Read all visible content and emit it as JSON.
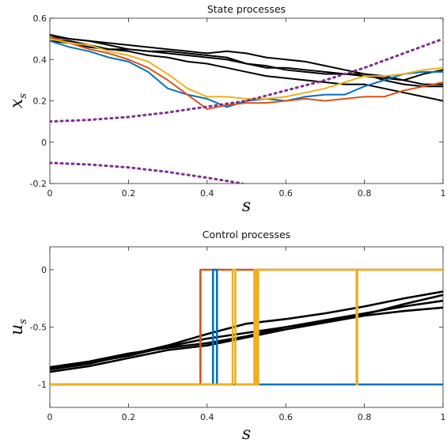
{
  "chart_data": [
    {
      "type": "line",
      "title": "State processes",
      "xlabel": "s",
      "ylabel_main": "x",
      "ylabel_sub": "s",
      "xlim": [
        0,
        1
      ],
      "ylim": [
        -0.2,
        0.6
      ],
      "xticks": [
        "0",
        "0.2",
        "0.4",
        "0.6",
        "0.8",
        "1"
      ],
      "yticks": [
        "-0.2",
        "0",
        "0.2",
        "0.4",
        "0.6"
      ],
      "colors": {
        "black": "#000000",
        "blue": "#0072BD",
        "orange": "#D95319",
        "yellow": "#EDB120",
        "purple": "#7E2F8E"
      },
      "series": [
        {
          "color": "black",
          "style": "solid",
          "x": [
            0,
            0.05,
            0.1,
            0.15,
            0.2,
            0.25,
            0.3,
            0.35,
            0.4,
            0.45,
            0.5,
            0.55,
            0.6,
            0.65,
            0.7,
            0.75,
            0.8,
            0.85,
            0.9,
            0.95,
            1
          ],
          "y": [
            0.51,
            0.5,
            0.49,
            0.48,
            0.47,
            0.46,
            0.45,
            0.44,
            0.43,
            0.44,
            0.43,
            0.41,
            0.4,
            0.39,
            0.37,
            0.35,
            0.33,
            0.3,
            0.28,
            0.27,
            0.27
          ]
        },
        {
          "color": "black",
          "style": "solid",
          "x": [
            0,
            0.05,
            0.1,
            0.15,
            0.2,
            0.25,
            0.3,
            0.35,
            0.4,
            0.45,
            0.5,
            0.55,
            0.6,
            0.65,
            0.7,
            0.75,
            0.8,
            0.85,
            0.9,
            0.95,
            1
          ],
          "y": [
            0.5,
            0.49,
            0.47,
            0.45,
            0.45,
            0.44,
            0.44,
            0.43,
            0.42,
            0.41,
            0.38,
            0.36,
            0.36,
            0.35,
            0.34,
            0.33,
            0.33,
            0.32,
            0.3,
            0.33,
            0.35
          ]
        },
        {
          "color": "black",
          "style": "solid",
          "x": [
            0,
            0.05,
            0.1,
            0.15,
            0.2,
            0.25,
            0.3,
            0.35,
            0.4,
            0.45,
            0.5,
            0.55,
            0.6,
            0.65,
            0.7,
            0.75,
            0.8,
            0.85,
            0.9,
            0.95,
            1
          ],
          "y": [
            0.49,
            0.48,
            0.46,
            0.45,
            0.44,
            0.42,
            0.41,
            0.39,
            0.38,
            0.36,
            0.34,
            0.32,
            0.31,
            0.3,
            0.29,
            0.28,
            0.28,
            0.26,
            0.24,
            0.22,
            0.2
          ]
        },
        {
          "color": "black",
          "style": "solid",
          "x": [
            0,
            0.05,
            0.1,
            0.15,
            0.2,
            0.25,
            0.3,
            0.35,
            0.4,
            0.45,
            0.5,
            0.55,
            0.6,
            0.65,
            0.7,
            0.75,
            0.8,
            0.85,
            0.9,
            0.95,
            1
          ],
          "y": [
            0.52,
            0.5,
            0.49,
            0.47,
            0.45,
            0.44,
            0.43,
            0.42,
            0.41,
            0.4,
            0.38,
            0.37,
            0.35,
            0.34,
            0.33,
            0.33,
            0.32,
            0.31,
            0.3,
            0.28,
            0.28
          ]
        },
        {
          "color": "blue",
          "style": "solid",
          "x": [
            0,
            0.05,
            0.1,
            0.15,
            0.2,
            0.25,
            0.3,
            0.35,
            0.4,
            0.45,
            0.5,
            0.55,
            0.6,
            0.65,
            0.7,
            0.75,
            0.8,
            0.85,
            0.9,
            0.95,
            1
          ],
          "y": [
            0.49,
            0.46,
            0.44,
            0.41,
            0.39,
            0.34,
            0.26,
            0.23,
            0.21,
            0.17,
            0.2,
            0.21,
            0.2,
            0.22,
            0.23,
            0.23,
            0.27,
            0.3,
            0.33,
            0.34,
            0.34
          ]
        },
        {
          "color": "orange",
          "style": "solid",
          "x": [
            0,
            0.05,
            0.1,
            0.15,
            0.2,
            0.25,
            0.3,
            0.35,
            0.4,
            0.45,
            0.5,
            0.55,
            0.6,
            0.65,
            0.7,
            0.75,
            0.8,
            0.85,
            0.9,
            0.95,
            1
          ],
          "y": [
            0.51,
            0.48,
            0.45,
            0.43,
            0.4,
            0.36,
            0.3,
            0.23,
            0.16,
            0.18,
            0.19,
            0.19,
            0.2,
            0.21,
            0.2,
            0.21,
            0.22,
            0.22,
            0.25,
            0.27,
            0.29
          ]
        },
        {
          "color": "yellow",
          "style": "solid",
          "x": [
            0,
            0.05,
            0.1,
            0.15,
            0.2,
            0.25,
            0.3,
            0.35,
            0.4,
            0.45,
            0.5,
            0.55,
            0.6,
            0.65,
            0.7,
            0.75,
            0.8,
            0.85,
            0.9,
            0.95,
            1
          ],
          "y": [
            0.5,
            0.48,
            0.47,
            0.44,
            0.42,
            0.39,
            0.33,
            0.26,
            0.22,
            0.22,
            0.21,
            0.21,
            0.22,
            0.24,
            0.26,
            0.29,
            0.32,
            0.32,
            0.33,
            0.35,
            0.36
          ]
        },
        {
          "color": "purple",
          "style": "dotted",
          "x": [
            0,
            0.1,
            0.2,
            0.3,
            0.4,
            0.5,
            0.6,
            0.7,
            0.8,
            0.9,
            1
          ],
          "y": [
            0.1,
            0.108,
            0.122,
            0.144,
            0.172,
            0.2,
            0.25,
            0.3,
            0.36,
            0.43,
            0.5
          ]
        },
        {
          "color": "purple",
          "style": "dotted",
          "x": [
            0,
            0.1,
            0.2,
            0.3,
            0.4,
            0.49
          ],
          "y": [
            -0.1,
            -0.108,
            -0.122,
            -0.144,
            -0.172,
            -0.2
          ]
        }
      ]
    },
    {
      "type": "line",
      "title": "Control processes",
      "xlabel": "s",
      "ylabel_main": "u",
      "ylabel_sub": "s",
      "xlim": [
        0,
        1
      ],
      "ylim": [
        -1.2,
        0.2
      ],
      "xticks": [
        "0",
        "0.2",
        "0.4",
        "0.6",
        "0.8",
        "1"
      ],
      "yticks": [
        "-1",
        "-0.5",
        "0"
      ],
      "colors": {
        "black": "#000000",
        "blue": "#0072BD",
        "orange": "#D95319",
        "yellow": "#EDB120"
      },
      "series": [
        {
          "color": "black",
          "style": "solid",
          "x": [
            0,
            0.1,
            0.2,
            0.3,
            0.4,
            0.5,
            0.6,
            0.7,
            0.8,
            0.9,
            1
          ],
          "y": [
            -0.87,
            -0.82,
            -0.74,
            -0.66,
            -0.56,
            -0.47,
            -0.43,
            -0.38,
            -0.32,
            -0.25,
            -0.19
          ]
        },
        {
          "color": "black",
          "style": "solid",
          "x": [
            0,
            0.1,
            0.2,
            0.3,
            0.4,
            0.5,
            0.6,
            0.7,
            0.8,
            0.9,
            1
          ],
          "y": [
            -0.85,
            -0.8,
            -0.73,
            -0.68,
            -0.64,
            -0.58,
            -0.5,
            -0.44,
            -0.38,
            -0.32,
            -0.27
          ]
        },
        {
          "color": "black",
          "style": "solid",
          "x": [
            0,
            0.1,
            0.2,
            0.3,
            0.4,
            0.5,
            0.6,
            0.7,
            0.8,
            0.9,
            1
          ],
          "y": [
            -0.89,
            -0.84,
            -0.77,
            -0.7,
            -0.66,
            -0.59,
            -0.52,
            -0.46,
            -0.4,
            -0.36,
            -0.33
          ]
        },
        {
          "color": "black",
          "style": "solid",
          "x": [
            0,
            0.1,
            0.2,
            0.3,
            0.4,
            0.5,
            0.6,
            0.7,
            0.8,
            0.9,
            1
          ],
          "y": [
            -0.86,
            -0.81,
            -0.75,
            -0.67,
            -0.6,
            -0.55,
            -0.5,
            -0.45,
            -0.39,
            -0.3,
            -0.22
          ]
        },
        {
          "color": "orange",
          "style": "solid",
          "x": [
            0,
            0.383,
            0.383,
            0.47,
            0.47,
            1
          ],
          "y": [
            -1,
            -1,
            0,
            0,
            0,
            0
          ]
        },
        {
          "color": "blue",
          "style": "solid",
          "x": [
            0,
            0.415,
            0.415,
            0.425,
            0.425,
            1
          ],
          "y": [
            -1,
            -1,
            0,
            0,
            -1,
            -1
          ]
        },
        {
          "color": "yellow",
          "style": "solid",
          "x": [
            0,
            0.465,
            0.465,
            0.472,
            0.472,
            0.52,
            0.52,
            0.525,
            0.525,
            0.53,
            0.53,
            0.78,
            0.78,
            0.782,
            0.782,
            1
          ],
          "y": [
            -1,
            -1,
            0,
            0,
            -1,
            -1,
            0,
            0,
            -1,
            -1,
            0,
            0,
            -1,
            -1,
            0,
            0
          ]
        }
      ]
    }
  ]
}
